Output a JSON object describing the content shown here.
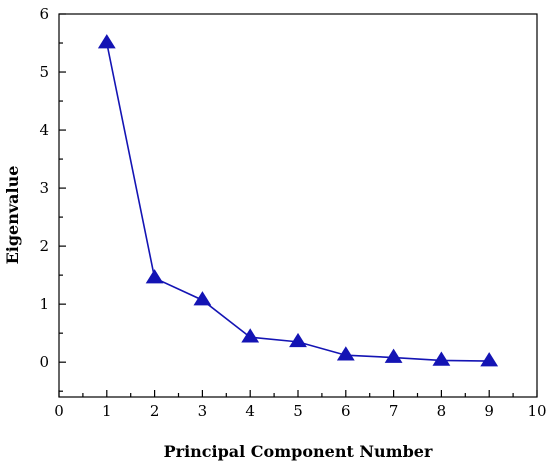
{
  "chart_data": {
    "type": "line",
    "title": "",
    "xlabel": "Principal Component Number",
    "ylabel": "Eigenvalue",
    "xlim": [
      0,
      10
    ],
    "ylim": [
      -0.6,
      6
    ],
    "x_ticks": [
      "0",
      "1",
      "2",
      "3",
      "4",
      "5",
      "6",
      "7",
      "8",
      "9",
      "10"
    ],
    "y_ticks": [
      "0",
      "1",
      "2",
      "3",
      "4",
      "5",
      "6"
    ],
    "grid": false,
    "legend": "none",
    "marker": "triangle-up",
    "color": "#1414b4",
    "series": [
      {
        "x": [
          1,
          2,
          3,
          4,
          5,
          6,
          7,
          8,
          9
        ],
        "values": [
          5.5,
          1.45,
          1.07,
          0.43,
          0.35,
          0.12,
          0.08,
          0.03,
          0.02
        ]
      }
    ]
  }
}
